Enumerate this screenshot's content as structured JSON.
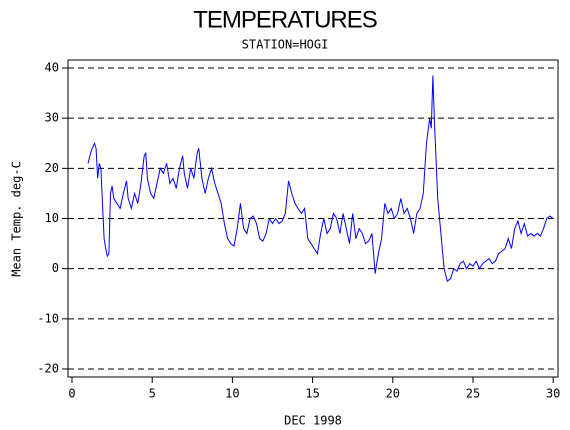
{
  "chart_data": {
    "type": "line",
    "title": "TEMPERATURES",
    "subtitle": "STATION=HOGI",
    "x_label": "DEC 1998",
    "y_label": "Mean Temp. deg-C",
    "xlim": [
      -0.25,
      30.3
    ],
    "ylim": [
      -21.6,
      41.6
    ],
    "xticks": [
      0,
      5,
      10,
      15,
      20,
      25,
      30
    ],
    "yticks": [
      -20,
      -10,
      0,
      10,
      20,
      30,
      40
    ],
    "grid": true,
    "series": [
      {
        "color": "#0000ff",
        "x": [
          1.0,
          1.2,
          1.4,
          1.5,
          1.6,
          1.7,
          1.8,
          1.9,
          2.0,
          2.1,
          2.2,
          2.3,
          2.4,
          2.5,
          2.6,
          2.8,
          3.0,
          3.2,
          3.4,
          3.5,
          3.7,
          3.9,
          4.1,
          4.3,
          4.5,
          4.6,
          4.7,
          4.9,
          5.1,
          5.3,
          5.5,
          5.7,
          5.9,
          6.1,
          6.3,
          6.5,
          6.7,
          6.9,
          7.0,
          7.2,
          7.4,
          7.6,
          7.8,
          7.9,
          8.1,
          8.3,
          8.5,
          8.7,
          8.9,
          9.1,
          9.3,
          9.5,
          9.7,
          9.9,
          10.1,
          10.3,
          10.5,
          10.7,
          10.9,
          11.1,
          11.3,
          11.5,
          11.7,
          11.9,
          12.1,
          12.3,
          12.5,
          12.7,
          12.9,
          13.1,
          13.3,
          13.5,
          13.7,
          13.9,
          14.1,
          14.3,
          14.5,
          14.7,
          14.9,
          15.1,
          15.3,
          15.5,
          15.7,
          15.9,
          16.1,
          16.3,
          16.5,
          16.7,
          16.9,
          17.1,
          17.3,
          17.5,
          17.7,
          17.9,
          18.1,
          18.3,
          18.5,
          18.7,
          18.9,
          19.1,
          19.3,
          19.5,
          19.7,
          19.9,
          20.1,
          20.3,
          20.5,
          20.7,
          20.9,
          21.1,
          21.3,
          21.5,
          21.7,
          21.9,
          22.1,
          22.3,
          22.4,
          22.5,
          22.6,
          22.8,
          23.0,
          23.2,
          23.4,
          23.6,
          23.8,
          24.0,
          24.2,
          24.4,
          24.6,
          24.8,
          25.0,
          25.2,
          25.4,
          25.6,
          25.8,
          26.0,
          26.2,
          26.4,
          26.6,
          26.8,
          27.0,
          27.2,
          27.4,
          27.6,
          27.8,
          28.0,
          28.2,
          28.4,
          28.6,
          28.8,
          29.0,
          29.2,
          29.4,
          29.6,
          29.8,
          30.0
        ],
        "values": [
          21,
          23.5,
          25,
          24,
          18,
          21,
          20,
          13,
          6,
          4,
          2.5,
          3,
          15,
          16.5,
          14,
          13,
          12,
          15,
          17.5,
          14,
          12,
          15,
          13,
          17,
          22.5,
          23,
          18,
          15,
          14,
          17,
          20,
          19,
          21,
          17,
          18,
          16,
          20,
          22.5,
          19,
          16,
          20,
          18,
          23,
          24,
          18,
          15,
          18,
          20,
          17,
          15,
          13,
          9,
          6,
          5,
          4.5,
          8,
          13,
          8,
          7,
          10,
          10.5,
          9,
          6,
          5.5,
          7,
          10,
          9,
          10,
          9,
          9.5,
          11,
          17.5,
          15,
          13,
          12,
          11,
          12,
          6,
          5,
          4,
          3,
          7,
          10,
          7,
          8,
          11,
          10,
          7,
          11,
          8,
          5,
          11,
          6,
          8,
          7,
          5,
          5.5,
          7,
          -1,
          3,
          6,
          13,
          11,
          12,
          10,
          11,
          14,
          11,
          12,
          10,
          7,
          11,
          12,
          15,
          25,
          30,
          28,
          38.5,
          29,
          14,
          7,
          0,
          -2.5,
          -2,
          0,
          -0.5,
          1,
          1.5,
          0,
          1,
          0.5,
          1.5,
          0,
          1,
          1.5,
          2,
          1,
          1.5,
          3,
          3.5,
          4,
          6,
          4,
          8,
          9.5,
          7,
          9,
          6.5,
          7,
          6.5,
          7,
          6.5,
          8,
          10,
          10.5,
          10
        ]
      }
    ]
  }
}
